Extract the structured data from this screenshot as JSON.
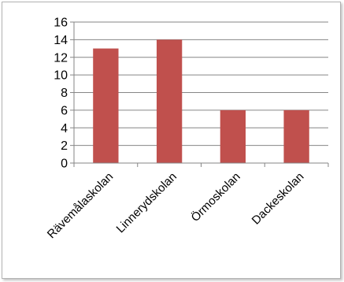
{
  "chart_data": {
    "type": "bar",
    "title": "",
    "xlabel": "",
    "ylabel": "",
    "categories": [
      "Rävemålaskolan",
      "Linnerydskolan",
      "Örmoskolan",
      "Dackeskolan"
    ],
    "values": [
      13,
      14,
      6,
      6
    ],
    "ylim": [
      0,
      16
    ],
    "yticks": [
      "0",
      "2",
      "4",
      "6",
      "8",
      "10",
      "12",
      "14",
      "16"
    ],
    "grid": true,
    "legend": "none",
    "bar_color": "#C0504D",
    "grid_color": "#868686"
  }
}
